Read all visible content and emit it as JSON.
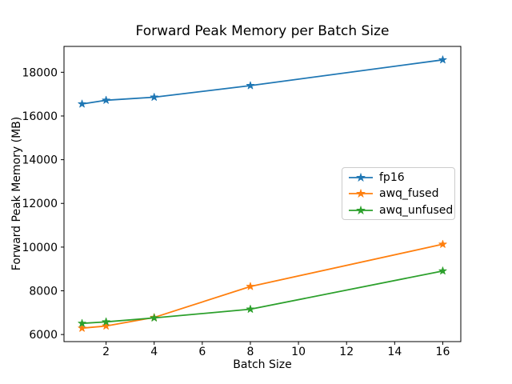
{
  "chart_data": {
    "type": "line",
    "title": "Forward Peak Memory per Batch Size",
    "xlabel": "Batch Size",
    "ylabel": "Forward Peak Memory (MB)",
    "x": [
      1,
      2,
      4,
      8,
      16
    ],
    "series": [
      {
        "name": "fp16",
        "color": "#1f77b4",
        "marker": "star",
        "values": [
          16550,
          16720,
          16860,
          17390,
          18570
        ]
      },
      {
        "name": "awq_fused",
        "color": "#ff7f0e",
        "marker": "star",
        "values": [
          6290,
          6390,
          6780,
          8200,
          10130
        ]
      },
      {
        "name": "awq_unfused",
        "color": "#2ca02c",
        "marker": "star",
        "values": [
          6510,
          6580,
          6760,
          7160,
          8910
        ]
      }
    ],
    "xticks": [
      2,
      4,
      6,
      8,
      10,
      12,
      14,
      16
    ],
    "yticks": [
      6000,
      8000,
      10000,
      12000,
      14000,
      16000,
      18000
    ],
    "xlim": [
      0.25,
      16.75
    ],
    "ylim": [
      5676,
      19184
    ],
    "grid": false,
    "legend_position": "center right",
    "axes_edge_color": "#000000",
    "background_color": "#ffffff"
  }
}
